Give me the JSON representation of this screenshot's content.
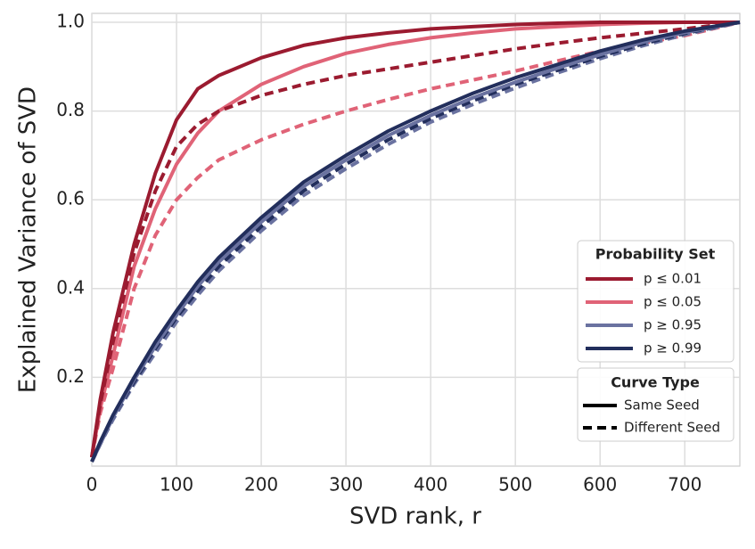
{
  "chart_data": {
    "type": "line",
    "x_label": "SVD rank, r",
    "y_label": "Explained Variance of SVD",
    "x": [
      0,
      10,
      25,
      50,
      75,
      100,
      125,
      150,
      200,
      250,
      300,
      350,
      400,
      450,
      500,
      550,
      600,
      650,
      700,
      765
    ],
    "series": [
      {
        "name": "p ≤ 0.01",
        "color": "#9b1b30",
        "values": [
          0.02,
          0.15,
          0.3,
          0.5,
          0.66,
          0.78,
          0.85,
          0.88,
          0.92,
          0.948,
          0.965,
          0.976,
          0.985,
          0.99,
          0.995,
          0.998,
          1.0,
          1.0,
          1.0,
          1.0
        ],
        "values_different_seed": [
          0.02,
          0.14,
          0.28,
          0.48,
          0.62,
          0.72,
          0.77,
          0.8,
          0.835,
          0.86,
          0.88,
          0.895,
          0.91,
          0.925,
          0.94,
          0.953,
          0.965,
          0.975,
          0.985,
          1.0
        ]
      },
      {
        "name": "p ≤ 0.05",
        "color": "#e06377",
        "values": [
          0.02,
          0.13,
          0.25,
          0.45,
          0.58,
          0.68,
          0.75,
          0.8,
          0.86,
          0.9,
          0.93,
          0.95,
          0.965,
          0.976,
          0.985,
          0.99,
          0.995,
          0.998,
          1.0,
          1.0
        ],
        "values_different_seed": [
          0.02,
          0.12,
          0.22,
          0.4,
          0.52,
          0.6,
          0.65,
          0.69,
          0.735,
          0.77,
          0.8,
          0.826,
          0.85,
          0.87,
          0.89,
          0.913,
          0.935,
          0.953,
          0.97,
          1.0
        ]
      },
      {
        "name": "p ≥ 0.95",
        "color": "#6a72a0",
        "values": [
          0.01,
          0.05,
          0.11,
          0.195,
          0.27,
          0.34,
          0.405,
          0.46,
          0.55,
          0.63,
          0.69,
          0.745,
          0.79,
          0.83,
          0.865,
          0.897,
          0.927,
          0.955,
          0.977,
          1.0
        ],
        "values_different_seed": [
          0.01,
          0.05,
          0.105,
          0.185,
          0.255,
          0.325,
          0.385,
          0.44,
          0.53,
          0.61,
          0.67,
          0.725,
          0.775,
          0.815,
          0.852,
          0.886,
          0.918,
          0.947,
          0.972,
          1.0
        ]
      },
      {
        "name": "p ≥ 0.99",
        "color": "#222e5c",
        "values": [
          0.01,
          0.055,
          0.115,
          0.2,
          0.28,
          0.35,
          0.415,
          0.47,
          0.56,
          0.64,
          0.7,
          0.755,
          0.8,
          0.84,
          0.875,
          0.905,
          0.935,
          0.96,
          0.98,
          1.0
        ],
        "values_different_seed": [
          0.01,
          0.05,
          0.11,
          0.19,
          0.265,
          0.335,
          0.395,
          0.45,
          0.54,
          0.62,
          0.68,
          0.735,
          0.783,
          0.823,
          0.86,
          0.892,
          0.923,
          0.951,
          0.975,
          1.0
        ]
      }
    ],
    "legend_title": "Probability Set",
    "curve_type_legend": {
      "title": "Curve Type",
      "entries": [
        "Same Seed",
        "Different Seed"
      ]
    },
    "xlim": [
      0,
      765
    ],
    "xticks": [
      0,
      100,
      200,
      300,
      400,
      500,
      600,
      700
    ],
    "ylim": [
      0,
      1.02
    ],
    "yticks": [
      0.2,
      0.4,
      0.6,
      0.8,
      {
        "value": 1,
        "label": "1.0"
      }
    ],
    "grid": true,
    "legend_position": "lower right"
  }
}
